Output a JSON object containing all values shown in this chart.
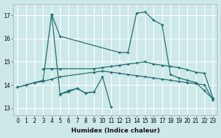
{
  "background_color": "#cde8e8",
  "grid_color": "#b8d8d8",
  "line_color": "#1a6b6b",
  "xlabel": "Humidex (Indice chaleur)",
  "xlim": [
    -0.5,
    23.5
  ],
  "ylim": [
    12.7,
    17.5
  ],
  "yticks": [
    13,
    14,
    15,
    16,
    17
  ],
  "xticks": [
    0,
    1,
    2,
    3,
    4,
    5,
    6,
    7,
    8,
    9,
    10,
    11,
    12,
    13,
    14,
    15,
    16,
    17,
    18,
    19,
    20,
    21,
    22,
    23
  ],
  "lines": [
    {
      "x": [
        0,
        1,
        2,
        3,
        4,
        5,
        12,
        13,
        14,
        15,
        16,
        17,
        18,
        19,
        20,
        21,
        22,
        23
      ],
      "y": [
        13.9,
        14.0,
        14.1,
        14.2,
        17.05,
        16.1,
        15.4,
        15.4,
        17.1,
        17.15,
        16.8,
        16.6,
        14.45,
        14.3,
        14.2,
        14.1,
        13.75,
        13.4
      ]
    },
    {
      "x": [
        4,
        5,
        6,
        7,
        8,
        9,
        10,
        11
      ],
      "y": [
        17.05,
        13.6,
        13.75,
        13.85,
        13.65,
        13.7,
        14.35,
        13.05
      ]
    },
    {
      "x": [
        3,
        4,
        5,
        9,
        10,
        11,
        12,
        13,
        14,
        15,
        16,
        17,
        18,
        19,
        20,
        21,
        22,
        23
      ],
      "y": [
        14.7,
        14.7,
        14.7,
        14.7,
        14.75,
        14.8,
        14.85,
        14.9,
        14.95,
        15.0,
        14.9,
        14.85,
        14.8,
        14.75,
        14.65,
        14.55,
        14.5,
        13.45
      ]
    },
    {
      "x": [
        0,
        1,
        2,
        3,
        4,
        5,
        9,
        10,
        11,
        12,
        13,
        14,
        15,
        16,
        17,
        18,
        19,
        20,
        21,
        22,
        23
      ],
      "y": [
        13.9,
        14.0,
        14.1,
        14.15,
        14.25,
        14.35,
        14.55,
        14.6,
        14.55,
        14.5,
        14.45,
        14.4,
        14.35,
        14.3,
        14.25,
        14.2,
        14.15,
        14.1,
        14.05,
        14.0,
        13.35
      ]
    },
    {
      "x": [
        5,
        6,
        7,
        8,
        9
      ],
      "y": [
        13.6,
        13.7,
        13.85,
        13.65,
        13.7
      ]
    }
  ]
}
